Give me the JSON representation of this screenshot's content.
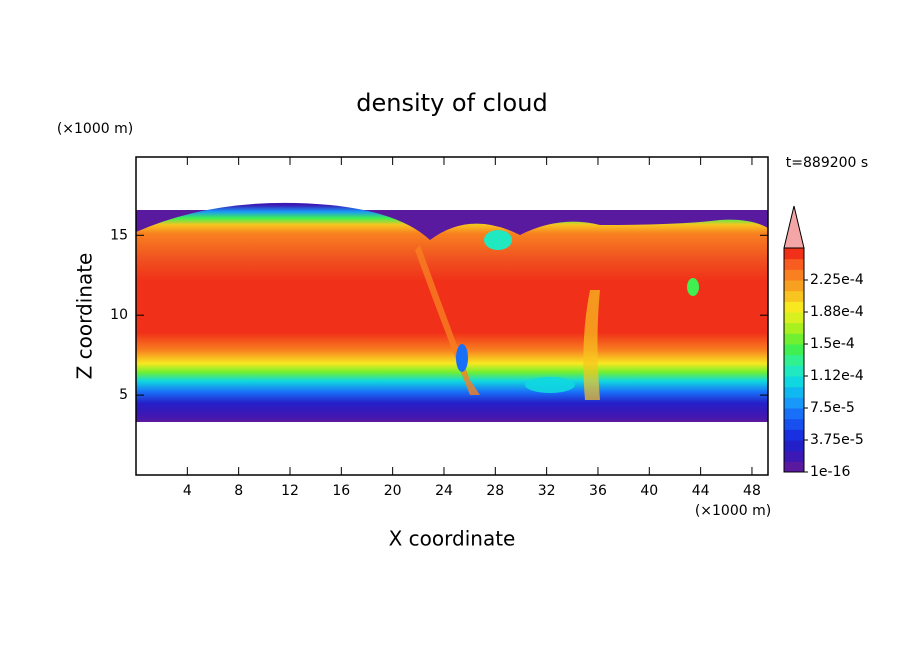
{
  "chart_data": {
    "type": "contour",
    "title": "density of cloud",
    "x_label": "X coordinate",
    "y_label": "Z coordinate",
    "x_unit": "(×1000 m)",
    "y_unit": "(×1000 m)",
    "annotation": "t=889200 s",
    "xlim": [
      0,
      49.25
    ],
    "xticks": [
      4,
      8,
      12,
      16,
      20,
      24,
      28,
      32,
      36,
      40,
      44,
      48
    ],
    "ylim": [
      0,
      19.9
    ],
    "yticks": [
      5,
      10,
      15
    ],
    "colorbar": {
      "clim": [
        1e-16,
        0.0002625
      ],
      "ticks": [
        1e-16,
        {
          "value": 3.75e-05,
          "label": "3.75e-5"
        },
        {
          "value": 7.5e-05,
          "label": "7.5e-5"
        },
        {
          "value": 0.0001125,
          "label": "1.12e-4"
        },
        {
          "value": 0.00015,
          "label": "1.5e-4"
        },
        {
          "value": 0.0001875,
          "label": "1.88e-4"
        },
        {
          "value": 0.000225,
          "label": "2.25e-4"
        }
      ],
      "colors": [
        "#5a1aa0",
        "#3c18b4",
        "#2420c8",
        "#1830e0",
        "#1850f0",
        "#1870f8",
        "#1898f8",
        "#10b8f0",
        "#10d8e0",
        "#20e8c0",
        "#30f090",
        "#40f050",
        "#70f030",
        "#a8f020",
        "#d8f020",
        "#f8e820",
        "#f8c420",
        "#f8a020",
        "#f88020",
        "#f85c20",
        "#f03018"
      ],
      "extend_color": "#f4a6a6"
    }
  }
}
